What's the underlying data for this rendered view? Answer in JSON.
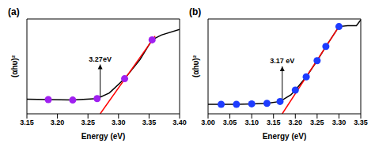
{
  "chart_data": [
    {
      "type": "line",
      "panel_label": "(a)",
      "x_label": "Energy (eV)",
      "y_label": "(αhυ)²",
      "xlim": [
        3.15,
        3.4
      ],
      "xticks": [
        3.15,
        {
          "value": 3.2,
          "label": "3.20"
        },
        3.25,
        {
          "value": 3.3,
          "label": "3.30"
        },
        3.35,
        {
          "value": 3.4,
          "label": "3.40"
        }
      ],
      "ylim": [
        0,
        10
      ],
      "tick_labels": "x",
      "series": [
        {
          "type": "line",
          "marker": "none",
          "color": "#000000",
          "x": [
            3.15,
            3.185,
            3.225,
            3.265,
            3.285,
            3.31,
            3.335,
            3.355,
            3.37,
            3.4
          ],
          "values": [
            1.55,
            1.5,
            1.45,
            1.6,
            2.2,
            3.7,
            5.7,
            7.8,
            8.3,
            8.9
          ]
        },
        {
          "type": "scatter",
          "marker": "circle",
          "color": "#a020f0",
          "x": [
            3.185,
            3.225,
            3.265,
            3.31,
            3.355
          ],
          "values": [
            1.5,
            1.45,
            1.6,
            3.7,
            7.8
          ]
        },
        {
          "type": "line",
          "marker": "none",
          "color": "#ff0000",
          "x": [
            3.27,
            3.36
          ],
          "values": [
            0,
            8.2
          ]
        }
      ],
      "annotations": [
        {
          "text": "3.27eV",
          "x": 3.27,
          "y": 5.2
        }
      ]
    },
    {
      "type": "line",
      "panel_label": "(b)",
      "x_label": "Energy (eV)",
      "y_label": "(αhυ)²",
      "xlim": [
        3.0,
        3.35
      ],
      "xticks": [
        {
          "value": 3.0,
          "label": "3.00"
        },
        3.05,
        {
          "value": 3.1,
          "label": "3.10"
        },
        3.15,
        {
          "value": 3.2,
          "label": "3.20"
        },
        3.25,
        {
          "value": 3.3,
          "label": "3.30"
        },
        3.35
      ],
      "ylim": [
        0,
        10
      ],
      "tick_labels": "x",
      "series": [
        {
          "type": "line",
          "marker": "none",
          "color": "#000000",
          "x": [
            3.0,
            3.03,
            3.065,
            3.1,
            3.135,
            3.165,
            3.19,
            3.2,
            3.225,
            3.25,
            3.27,
            3.3,
            3.32,
            3.34,
            3.35
          ],
          "values": [
            1.0,
            1.0,
            1.0,
            1.05,
            1.1,
            1.3,
            2.0,
            2.5,
            3.9,
            5.6,
            7.1,
            9.2,
            9.3,
            9.3,
            9.9
          ]
        },
        {
          "type": "scatter",
          "marker": "circle",
          "color": "#1e3cff",
          "x": [
            3.03,
            3.065,
            3.1,
            3.135,
            3.165,
            3.2,
            3.225,
            3.25,
            3.27,
            3.3
          ],
          "values": [
            1.0,
            1.0,
            1.05,
            1.1,
            1.3,
            2.5,
            3.9,
            5.6,
            7.1,
            9.2
          ]
        },
        {
          "type": "line",
          "marker": "none",
          "color": "#ff0000",
          "x": [
            3.17,
            3.3
          ],
          "values": [
            0,
            9.2
          ]
        }
      ],
      "annotations": [
        {
          "text": "3.17 eV",
          "x": 3.17,
          "y": 5.0
        }
      ]
    }
  ]
}
